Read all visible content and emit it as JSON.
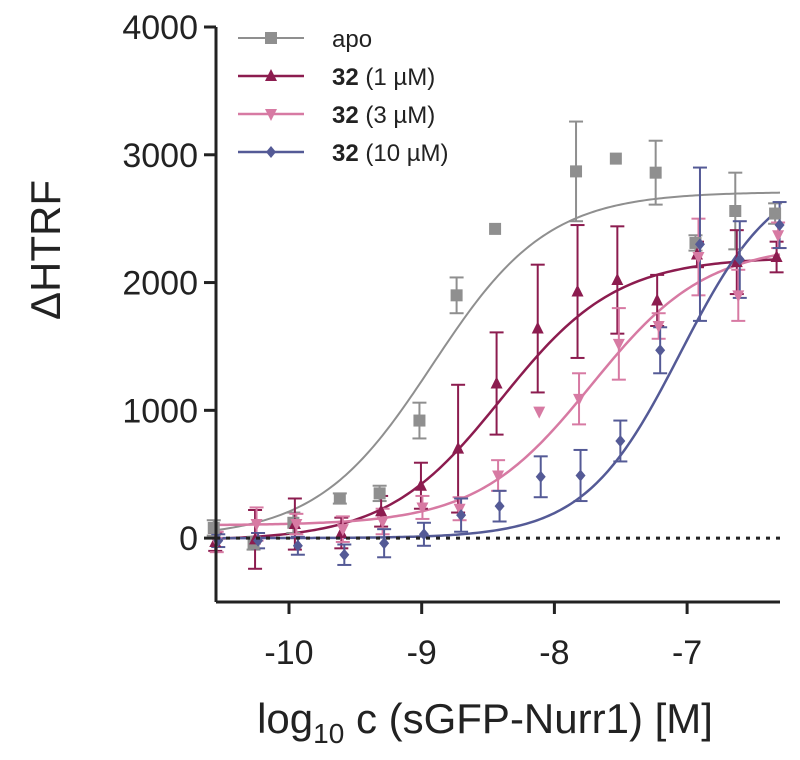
{
  "chart_data": {
    "type": "scatter",
    "title": "",
    "xlabel": {
      "prefix": "log",
      "subscript": "10",
      "suffix": " c (sGFP-Nurr1) [M]"
    },
    "ylabel": "ΔHTRF",
    "xlim": [
      -10.55,
      -6.3
    ],
    "ylim": [
      -500,
      4000
    ],
    "x_ticks": [
      -10,
      -9,
      -8,
      -7
    ],
    "x_tick_labels": [
      "-10",
      "-9",
      "-8",
      "-7"
    ],
    "y_ticks": [
      0,
      1000,
      2000,
      3000,
      4000
    ],
    "y_tick_labels": [
      "0",
      "1000",
      "2000",
      "3000",
      "4000"
    ],
    "baseline": 0,
    "series": [
      {
        "name": "apo",
        "label_bold": "",
        "label_rest": "apo",
        "color": "#8f8f8f",
        "marker": "square",
        "fit": {
          "bottom": 0,
          "top": 2710,
          "logec50": -8.92,
          "hill": 1.0
        },
        "points": [
          {
            "x": -10.55,
            "y": 80,
            "err": 60
          },
          {
            "x": -10.25,
            "y": -40,
            "err": 50
          },
          {
            "x": -9.95,
            "y": 120,
            "err": 80
          },
          {
            "x": -9.6,
            "y": 310,
            "err": 40
          },
          {
            "x": -9.3,
            "y": 350,
            "err": 60
          },
          {
            "x": -9.0,
            "y": 920,
            "err": 140
          },
          {
            "x": -8.72,
            "y": 1900,
            "err": 140
          },
          {
            "x": -8.43,
            "y": 2420,
            "err": 0
          },
          {
            "x": -7.82,
            "y": 2870,
            "err": 390
          },
          {
            "x": -7.52,
            "y": 2970,
            "err": 0
          },
          {
            "x": -7.22,
            "y": 2860,
            "err": 250
          },
          {
            "x": -6.92,
            "y": 2310,
            "err": 60
          },
          {
            "x": -6.62,
            "y": 2560,
            "err": 300
          },
          {
            "x": -6.32,
            "y": 2540,
            "err": 80
          }
        ]
      },
      {
        "name": "32 (1 µM)",
        "label_bold": "32",
        "label_rest": " (1 µM)",
        "color": "#8c1c4f",
        "marker": "triangle-up",
        "fit": {
          "bottom": -20,
          "top": 2200,
          "logec50": -8.4,
          "hill": 1.0
        },
        "points": [
          {
            "x": -10.55,
            "y": -30,
            "err": 70
          },
          {
            "x": -10.25,
            "y": -10,
            "err": 230
          },
          {
            "x": -9.95,
            "y": 110,
            "err": 200
          },
          {
            "x": -9.6,
            "y": 40,
            "err": 120
          },
          {
            "x": -9.3,
            "y": 210,
            "err": 120
          },
          {
            "x": -9.0,
            "y": 410,
            "err": 180
          },
          {
            "x": -8.72,
            "y": 700,
            "err": 500
          },
          {
            "x": -8.43,
            "y": 1210,
            "err": 400
          },
          {
            "x": -8.12,
            "y": 1640,
            "err": 500
          },
          {
            "x": -7.82,
            "y": 1930,
            "err": 520
          },
          {
            "x": -7.52,
            "y": 2020,
            "err": 420
          },
          {
            "x": -7.22,
            "y": 1860,
            "err": 200
          },
          {
            "x": -6.92,
            "y": 2220,
            "err": 100
          },
          {
            "x": -6.62,
            "y": 2160,
            "err": 250
          },
          {
            "x": -6.32,
            "y": 2200,
            "err": 120
          }
        ]
      },
      {
        "name": "32 (3 µM)",
        "label_bold": "32",
        "label_rest": " (3 µM)",
        "color": "#d77aa3",
        "marker": "triangle-down",
        "fit": {
          "bottom": 100,
          "top": 2300,
          "logec50": -7.72,
          "hill": 1.0
        },
        "points": [
          {
            "x": -10.55,
            "y": -30,
            "err": 80
          },
          {
            "x": -10.25,
            "y": 110,
            "err": 130
          },
          {
            "x": -9.95,
            "y": 110,
            "err": 80
          },
          {
            "x": -9.6,
            "y": 70,
            "err": 100
          },
          {
            "x": -9.3,
            "y": 130,
            "err": 100
          },
          {
            "x": -9.0,
            "y": 240,
            "err": 90
          },
          {
            "x": -8.72,
            "y": 230,
            "err": 90
          },
          {
            "x": -8.43,
            "y": 490,
            "err": 120
          },
          {
            "x": -8.12,
            "y": 990,
            "err": 0
          },
          {
            "x": -7.82,
            "y": 1090,
            "err": 200
          },
          {
            "x": -7.52,
            "y": 1520,
            "err": 280
          },
          {
            "x": -7.22,
            "y": 1660,
            "err": 100
          },
          {
            "x": -6.92,
            "y": 2200,
            "err": 300
          },
          {
            "x": -6.62,
            "y": 1900,
            "err": 200
          },
          {
            "x": -6.32,
            "y": 2370,
            "err": 100
          }
        ]
      },
      {
        "name": "32 (10 µM)",
        "label_bold": "32",
        "label_rest": " (10 µM)",
        "color": "#545a96",
        "marker": "diamond",
        "fit": {
          "bottom": 0,
          "top": 2900,
          "logec50": -7.05,
          "hill": 1.2
        },
        "points": [
          {
            "x": -10.55,
            "y": -20,
            "err": 50
          },
          {
            "x": -10.25,
            "y": -20,
            "err": 60
          },
          {
            "x": -9.95,
            "y": -60,
            "err": 70
          },
          {
            "x": -9.6,
            "y": -130,
            "err": 80
          },
          {
            "x": -9.3,
            "y": -40,
            "err": 110
          },
          {
            "x": -9.0,
            "y": 30,
            "err": 90
          },
          {
            "x": -8.72,
            "y": 180,
            "err": 130
          },
          {
            "x": -8.43,
            "y": 250,
            "err": 120
          },
          {
            "x": -8.12,
            "y": 480,
            "err": 160
          },
          {
            "x": -7.82,
            "y": 490,
            "err": 200
          },
          {
            "x": -7.52,
            "y": 760,
            "err": 160
          },
          {
            "x": -7.22,
            "y": 1470,
            "err": 180
          },
          {
            "x": -6.92,
            "y": 2300,
            "err": 600
          },
          {
            "x": -6.62,
            "y": 2180,
            "err": 300
          },
          {
            "x": -6.32,
            "y": 2450,
            "err": 180
          }
        ]
      }
    ]
  }
}
